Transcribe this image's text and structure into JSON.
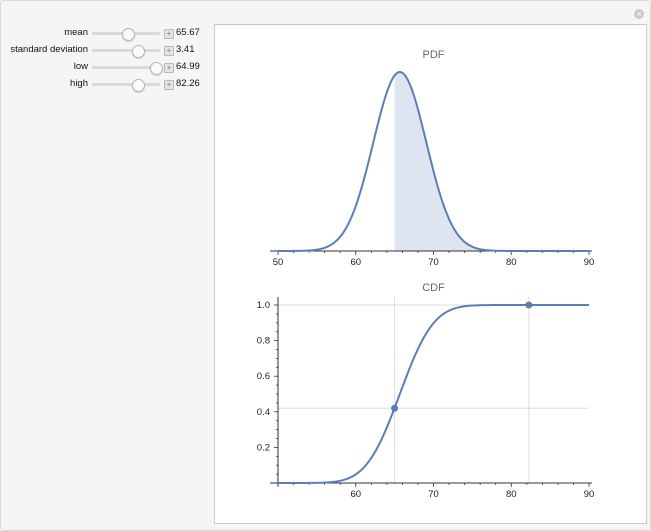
{
  "controls": [
    {
      "label": "mean",
      "value": "65.67",
      "position": 0.52
    },
    {
      "label": "standard deviation",
      "value": "3.41",
      "position": 0.66
    },
    {
      "label": "low",
      "value": "64.99",
      "position": 0.93
    },
    {
      "label": "high",
      "value": "82.26",
      "position": 0.66
    }
  ],
  "close_glyph": "×",
  "plus_glyph": "+",
  "accent_color": "#5b7fb5",
  "fill_color": "#dfe5f0",
  "chart_data": [
    {
      "type": "line",
      "title": "PDF",
      "mean": 65.67,
      "sd": 3.41,
      "shade_from": 64.99,
      "shade_to": 82.26,
      "xlim": [
        50,
        90
      ],
      "xticks": [
        "50",
        "60",
        "70",
        "80",
        "90"
      ]
    },
    {
      "type": "line",
      "title": "CDF",
      "mean": 65.67,
      "sd": 3.41,
      "xlim": [
        50,
        90
      ],
      "ylim": [
        0,
        1
      ],
      "xticks": [
        "60",
        "70",
        "80",
        "90"
      ],
      "yticks": [
        "0.2",
        "0.4",
        "0.6",
        "0.8",
        "1.0"
      ],
      "markers": [
        {
          "x": 64.99,
          "y": 0.42
        },
        {
          "x": 82.26,
          "y": 1.0
        }
      ]
    }
  ]
}
